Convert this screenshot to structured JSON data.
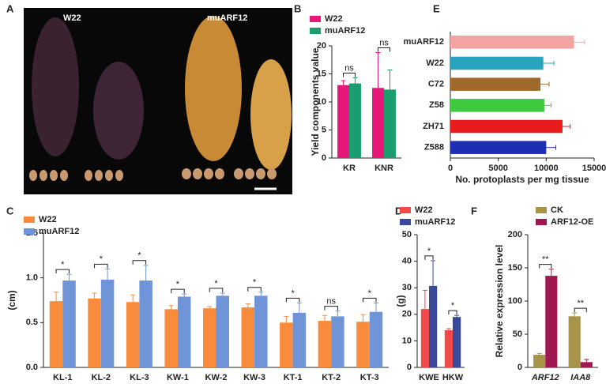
{
  "photo": {
    "panel_label": "A",
    "labels": [
      "W22",
      "muARF12"
    ]
  },
  "chart_data": [
    {
      "type": "bar",
      "panel_label": "B",
      "y_label": "Yield components value",
      "categories": [
        "KR",
        "KNR"
      ],
      "series": [
        {
          "name": "W22",
          "color": "#e6197a",
          "values": [
            13,
            12.5
          ],
          "errors": [
            0.8,
            6.3
          ]
        },
        {
          "name": "muARF12",
          "color": "#1a9e6e",
          "values": [
            13.3,
            12.2
          ],
          "errors": [
            1,
            3.5
          ]
        }
      ],
      "annotations": [
        "ns",
        "ns"
      ],
      "ylim": [
        0,
        20
      ],
      "yticks": [
        0,
        5,
        10,
        15,
        20
      ]
    },
    {
      "type": "bar",
      "orientation": "horizontal",
      "panel_label": "E",
      "x_label": "No. protoplasts per mg  tissue",
      "categories": [
        "muARF12",
        "W22",
        "C72",
        "Z58",
        "ZH71",
        "Z588"
      ],
      "values": [
        12900,
        9700,
        9400,
        9800,
        11700,
        10000
      ],
      "errors": [
        1100,
        1100,
        900,
        700,
        800,
        1000
      ],
      "colors": [
        "#f4a3a3",
        "#2aa3bf",
        "#a0692c",
        "#3fc93f",
        "#e81c1c",
        "#1f2fb5"
      ],
      "xlim": [
        0,
        15000
      ],
      "xticks": [
        0,
        5000,
        10000,
        15000
      ]
    },
    {
      "type": "bar",
      "panel_label": "C",
      "y_label": "(cm)",
      "categories": [
        "KL-1",
        "KL-2",
        "KL-3",
        "KW-1",
        "KW-2",
        "KW-3",
        "KT-1",
        "KT-2",
        "KT-3"
      ],
      "series": [
        {
          "name": "W22",
          "color": "#f98c3c",
          "values": [
            0.74,
            0.77,
            0.73,
            0.65,
            0.66,
            0.67,
            0.5,
            0.52,
            0.51
          ],
          "errors": [
            0.1,
            0.06,
            0.08,
            0.04,
            0.02,
            0.04,
            0.07,
            0.06,
            0.08
          ]
        },
        {
          "name": "muARF12",
          "color": "#6f95d8",
          "values": [
            0.97,
            0.98,
            0.97,
            0.79,
            0.8,
            0.8,
            0.61,
            0.57,
            0.62
          ],
          "errors": [
            0.07,
            0.12,
            0.17,
            0.03,
            0.03,
            0.04,
            0.11,
            0.06,
            0.1
          ]
        }
      ],
      "annotations": [
        "*",
        "*",
        "*",
        "*",
        "*",
        "*",
        "*",
        "ns",
        "*"
      ],
      "ylim": [
        0,
        1.5
      ],
      "yticks": [
        {
          "value": 0,
          "label": "0.0"
        },
        0.5,
        {
          "value": 1,
          "label": "1.0"
        },
        1.5
      ]
    },
    {
      "type": "bar",
      "panel_label": "D",
      "y_label": "(g)",
      "categories": [
        "KWE",
        "HKW"
      ],
      "series": [
        {
          "name": "W22",
          "color": "#f04a4a",
          "values": [
            22,
            14
          ],
          "errors": [
            7,
            0.6
          ]
        },
        {
          "name": "muARF12",
          "color": "#3a4a9a",
          "values": [
            30.7,
            19
          ],
          "errors": [
            9.5,
            0.6
          ]
        }
      ],
      "annotations": [
        "*",
        "*"
      ],
      "ylim": [
        0,
        50
      ],
      "yticks": [
        0,
        10,
        20,
        30,
        40,
        50
      ]
    },
    {
      "type": "bar",
      "panel_label": "F",
      "y_label": "Relative expression level",
      "category_style": "italic",
      "categories": [
        "ARF12",
        "IAA8"
      ],
      "series": [
        {
          "name": "CK",
          "color": "#a89448",
          "values": [
            19,
            77
          ],
          "errors": [
            2,
            5
          ]
        },
        {
          "name": "ARF12-OE",
          "color": "#a01850",
          "values": [
            138,
            8
          ],
          "errors": [
            10,
            4
          ]
        }
      ],
      "annotations": [
        "**",
        "**"
      ],
      "ylim": [
        0,
        200
      ],
      "yticks": [
        0,
        50,
        100,
        150,
        200
      ]
    }
  ]
}
